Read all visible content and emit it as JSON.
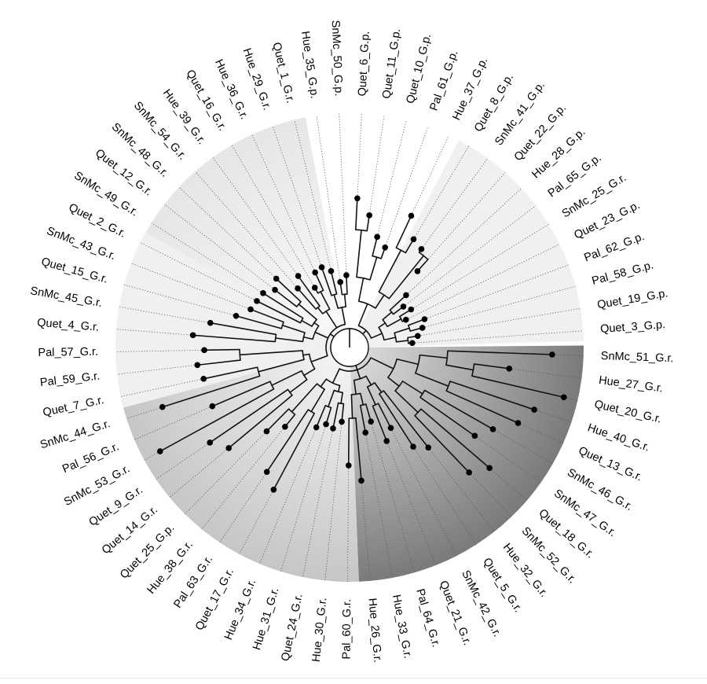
{
  "figure": {
    "type": "circular-phylogenetic-tree",
    "colors": {
      "branch": "#111111",
      "tip": "#000000",
      "guide": "#555555",
      "clade_light": "#f0f0f0",
      "clade_gray_start": "#e6e6e6",
      "clade_gray_end": "#f8f8f8",
      "clade_mid_start": "#c6c6c6",
      "clade_mid_end": "#f2f2f2",
      "clade_dark_start": "#7a7a7a",
      "clade_dark_end": "#d6d6d6",
      "clade_white": "#ffffff"
    }
  },
  "tips": [
    {
      "label": "SnMc_51_G.r."
    },
    {
      "label": "Hue_27_G.r."
    },
    {
      "label": "Quet_20_G.r."
    },
    {
      "label": "Hue_40_G.r."
    },
    {
      "label": "Quet_13_G.r."
    },
    {
      "label": "SnMc_46_G.r."
    },
    {
      "label": "SnMc_47_G.r."
    },
    {
      "label": "Quet_18_G.r."
    },
    {
      "label": "SnMc_52_G.r."
    },
    {
      "label": "Hue_32_G.r."
    },
    {
      "label": "Quet_5_G.r."
    },
    {
      "label": "SnMc_42_G.r."
    },
    {
      "label": "Quet_21_G.r."
    },
    {
      "label": "Pal_64_G.r."
    },
    {
      "label": "Hue_33_G.r."
    },
    {
      "label": "Hue_26_G.r."
    },
    {
      "label": "Pal_60_G.r."
    },
    {
      "label": "Hue_30_G.r."
    },
    {
      "label": "Quet_24_G.r."
    },
    {
      "label": "Hue_31_G.r."
    },
    {
      "label": "Hue_34_G.r."
    },
    {
      "label": "Quet_17_G.r."
    },
    {
      "label": "Pal_63_G.r."
    },
    {
      "label": "Hue_38_G.r."
    },
    {
      "label": "Quet_25_G.p."
    },
    {
      "label": "Quet_14_G.r."
    },
    {
      "label": "Quet_9_G.r."
    },
    {
      "label": "SnMc_53_G.r."
    },
    {
      "label": "Pal_56_G.r."
    },
    {
      "label": "SnMc_44_G.r."
    },
    {
      "label": "Quet_7_G.r."
    },
    {
      "label": "Pal_59_G.r."
    },
    {
      "label": "Pal_57_G.r."
    },
    {
      "label": "Quet_4_G.r."
    },
    {
      "label": "SnMc_45_G.r."
    },
    {
      "label": "Quet_15_G.r."
    },
    {
      "label": "SnMc_43_G.r."
    },
    {
      "label": "Quet_2_G.r."
    },
    {
      "label": "SnMc_49_G.r."
    },
    {
      "label": "Quet_12_G.r."
    },
    {
      "label": "SnMc_48_G.r."
    },
    {
      "label": "SnMc_54_G.r."
    },
    {
      "label": "Hue_39_G.r."
    },
    {
      "label": "Quet_16_G.r."
    },
    {
      "label": "Hue_36_G.r."
    },
    {
      "label": "Hue_29_G.r."
    },
    {
      "label": "Quet_1_G.r."
    },
    {
      "label": "Hue_35_G.p."
    },
    {
      "label": "SnMc_50_G.p."
    },
    {
      "label": "Quet_6_G.p."
    },
    {
      "label": "Quet_11_G.p."
    },
    {
      "label": "Quet_10_G.p."
    },
    {
      "label": "Pal_61_G.p."
    },
    {
      "label": "Hue_37_G.p."
    },
    {
      "label": "Quet_8_G.p."
    },
    {
      "label": "SnMc_41_G.p."
    },
    {
      "label": "Quet_22_G.p."
    },
    {
      "label": "Hue_28_G.p."
    },
    {
      "label": "Pal_65_G.p."
    },
    {
      "label": "SnMc_25_G.r."
    },
    {
      "label": "Quet_23_G.p."
    },
    {
      "label": "Pal_62_G.p."
    },
    {
      "label": "Pal_58_G.p."
    },
    {
      "label": "Quet_19_G.p."
    },
    {
      "label": "Quet_3_G.p."
    }
  ]
}
